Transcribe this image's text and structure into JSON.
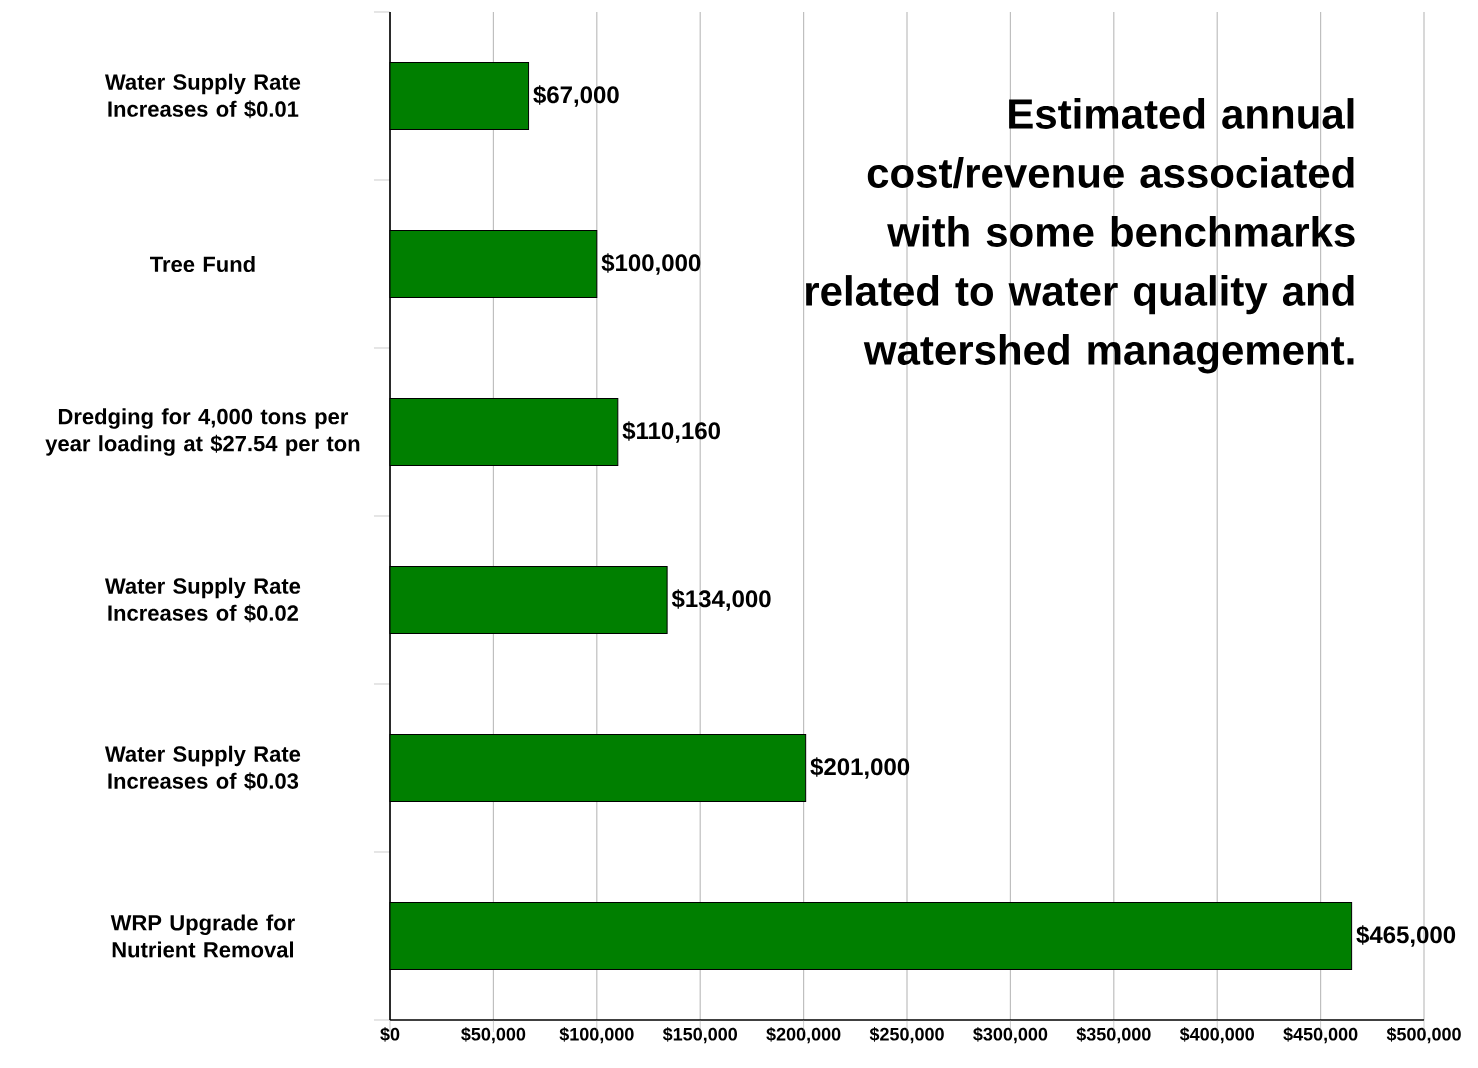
{
  "chart_data": {
    "type": "bar",
    "orientation": "horizontal",
    "title": "Estimated annual cost/revenue associated with some benchmarks related to water quality and watershed management.",
    "categories": [
      "Water Supply Rate Increases of $0.01",
      "Tree Fund",
      "Dredging for 4,000 tons per year loading at $27.54 per ton",
      "Water Supply Rate Increases of $0.02",
      "Water Supply Rate Increases of $0.03",
      "WRP Upgrade for Nutrient Removal"
    ],
    "values": [
      67000,
      100000,
      110160,
      134000,
      201000,
      465000
    ],
    "value_labels": [
      "$67,000",
      "$100,000",
      "$110,160",
      "$134,000",
      "$201,000",
      "$465,000"
    ],
    "color": "#007f00",
    "xlim": [
      0,
      500000
    ],
    "xticks": [
      {
        "value": 0,
        "label": "$0"
      },
      {
        "value": 50000,
        "label": "$50,000"
      },
      {
        "value": 100000,
        "label": "$100,000"
      },
      {
        "value": 150000,
        "label": "$150,000"
      },
      {
        "value": 200000,
        "label": "$200,000"
      },
      {
        "value": 250000,
        "label": "$250,000"
      },
      {
        "value": 300000,
        "label": "$300,000"
      },
      {
        "value": 350000,
        "label": "$350,000"
      },
      {
        "value": 400000,
        "label": "$400,000"
      },
      {
        "value": 450000,
        "label": "$450,000"
      },
      {
        "value": 500000,
        "label": "$500,000"
      }
    ],
    "grid": "x"
  }
}
